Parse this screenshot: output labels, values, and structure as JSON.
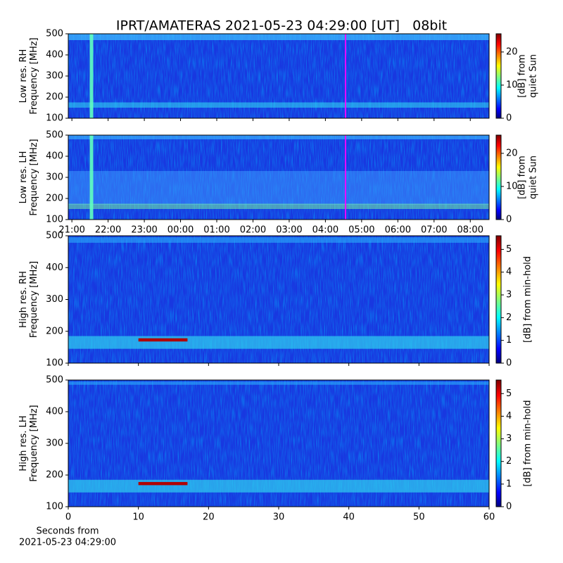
{
  "title": "IPRT/AMATERAS 2021-05-23 04:29:00 [UT]   08bit",
  "chart_data": [
    {
      "type": "heatmap",
      "ylabel": [
        "Low res. RH",
        "Frequency [MHz]"
      ],
      "ylim": [
        100,
        500
      ],
      "yticks": [
        100,
        200,
        300,
        400,
        500
      ],
      "xlim": [
        20.9,
        32.52
      ],
      "colorbar": {
        "label": [
          "[dB] from",
          "quiet Sun"
        ],
        "lim": [
          0,
          25.5
        ],
        "ticks": [
          0,
          10,
          20
        ]
      },
      "cmap": "jet"
    },
    {
      "type": "heatmap",
      "ylabel": [
        "Low res. LH",
        "Frequency [MHz]"
      ],
      "ylim": [
        100,
        500
      ],
      "yticks": [
        100,
        200,
        300,
        400,
        500
      ],
      "xlim": [
        20.9,
        32.52
      ],
      "xticks": [
        {
          "value": 21,
          "label": "21:00"
        },
        {
          "value": 22,
          "label": "22:00"
        },
        {
          "value": 23,
          "label": "23:00"
        },
        {
          "value": 24,
          "label": "00:00"
        },
        {
          "value": 25,
          "label": "01:00"
        },
        {
          "value": 26,
          "label": "02:00"
        },
        {
          "value": 27,
          "label": "03:00"
        },
        {
          "value": 28,
          "label": "04:00"
        },
        {
          "value": 29,
          "label": "05:00"
        },
        {
          "value": 30,
          "label": "06:00"
        },
        {
          "value": 31,
          "label": "07:00"
        },
        {
          "value": 32,
          "label": "08:00"
        }
      ],
      "colorbar": {
        "label": [
          "[dB] from",
          "quiet Sun"
        ],
        "lim": [
          0,
          25.5
        ],
        "ticks": [
          0,
          10,
          20
        ]
      },
      "cmap": "jet"
    },
    {
      "type": "heatmap",
      "ylabel": [
        "High res. RH",
        "Frequency [MHz]"
      ],
      "ylim": [
        100,
        500
      ],
      "yticks": [
        100,
        200,
        300,
        400,
        500
      ],
      "xlim": [
        0,
        60
      ],
      "colorbar": {
        "label": [
          "[dB] from min-hold"
        ],
        "lim": [
          0,
          5.6
        ],
        "ticks": [
          0,
          1,
          2,
          3,
          4,
          5
        ]
      },
      "cmap": "jet"
    },
    {
      "type": "heatmap",
      "ylabel": [
        "High res. LH",
        "Frequency [MHz]"
      ],
      "ylim": [
        100,
        500
      ],
      "yticks": [
        100,
        200,
        300,
        400,
        500
      ],
      "xlim": [
        0,
        60
      ],
      "xticks": [
        0,
        10,
        20,
        30,
        40,
        50,
        60
      ],
      "xlabel": [
        "Seconds from",
        "2021-05-23 04:29:00"
      ],
      "colorbar": {
        "label": [
          "[dB] from min-hold"
        ],
        "lim": [
          0,
          5.6
        ],
        "ticks": [
          0,
          1,
          2,
          3,
          4,
          5
        ]
      },
      "cmap": "jet"
    }
  ]
}
